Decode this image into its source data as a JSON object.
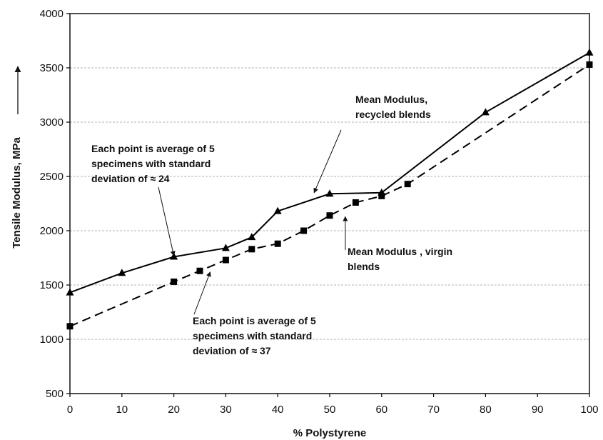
{
  "chart_data": {
    "type": "line",
    "xlabel": "% Polystyrene",
    "ylabel": "Tensile Modulus, MPa",
    "ylabel_arrow": "→",
    "xlim": [
      0,
      100
    ],
    "ylim": [
      500,
      4000
    ],
    "x_ticks": [
      0,
      10,
      20,
      30,
      40,
      50,
      60,
      70,
      80,
      90,
      100
    ],
    "y_ticks": [
      500,
      1000,
      1500,
      2000,
      2500,
      3000,
      3500,
      4000
    ],
    "grid": "horizontal",
    "series": [
      {
        "name": "Mean Modulus, recycled blends",
        "marker": "triangle",
        "line": "solid",
        "color": "#000000",
        "points": [
          [
            0,
            1430
          ],
          [
            10,
            1610
          ],
          [
            20,
            1760
          ],
          [
            30,
            1840
          ],
          [
            35,
            1940
          ],
          [
            40,
            2180
          ],
          [
            50,
            2340
          ],
          [
            60,
            2350
          ],
          [
            80,
            3090
          ],
          [
            100,
            3640
          ]
        ]
      },
      {
        "name": "Mean Modulus , virgin blends",
        "marker": "square",
        "line": "dashed",
        "color": "#000000",
        "points": [
          [
            0,
            1120
          ],
          [
            20,
            1530
          ],
          [
            25,
            1630
          ],
          [
            30,
            1730
          ],
          [
            35,
            1830
          ],
          [
            40,
            1880
          ],
          [
            45,
            2000
          ],
          [
            50,
            2140
          ],
          [
            55,
            2260
          ],
          [
            60,
            2320
          ],
          [
            65,
            2430
          ],
          [
            100,
            3530
          ]
        ]
      }
    ],
    "annotations": [
      {
        "id": "recycled-label",
        "lines": [
          "Mean Modulus,",
          "recycled blends"
        ],
        "arrow_to": [
          47,
          2350
        ]
      },
      {
        "id": "recycled-note",
        "lines": [
          "Each point is average of 5",
          "specimens with standard",
          "deviation of ≈  24"
        ],
        "arrow_to": [
          20,
          1770
        ]
      },
      {
        "id": "virgin-label",
        "lines": [
          "Mean Modulus , virgin",
          "blends"
        ],
        "arrow_to": [
          53,
          2130
        ]
      },
      {
        "id": "virgin-note",
        "lines": [
          "Each point is average of 5",
          "specimens with standard",
          "deviation of ≈ 37"
        ],
        "arrow_to": [
          27,
          1620
        ]
      }
    ]
  }
}
